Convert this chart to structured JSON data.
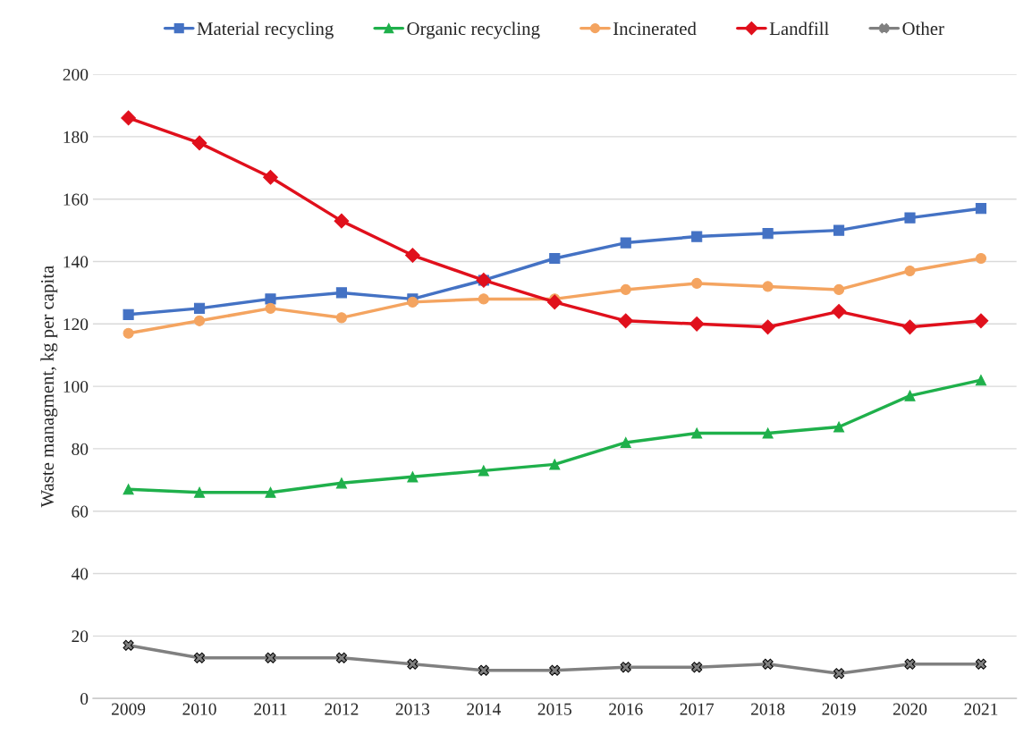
{
  "chart_data": {
    "type": "line",
    "ylabel": "Waste managment, kg per capita",
    "categories": [
      "2009",
      "2010",
      "2011",
      "2012",
      "2013",
      "2014",
      "2015",
      "2016",
      "2017",
      "2018",
      "2019",
      "2020",
      "2021"
    ],
    "series": [
      {
        "name": "Material recycling",
        "color": "#4472c4",
        "marker": "square",
        "values": [
          123,
          125,
          128,
          130,
          128,
          134,
          141,
          146,
          148,
          149,
          150,
          154,
          157
        ]
      },
      {
        "name": "Organic recycling",
        "color": "#1fb04b",
        "marker": "triangle",
        "values": [
          67,
          66,
          66,
          69,
          71,
          73,
          75,
          82,
          85,
          85,
          87,
          97,
          102
        ]
      },
      {
        "name": "Incinerated",
        "color": "#f4a460",
        "marker": "circle",
        "values": [
          117,
          121,
          125,
          122,
          127,
          128,
          128,
          131,
          133,
          132,
          131,
          137,
          141
        ]
      },
      {
        "name": "Landfill",
        "color": "#e0101c",
        "marker": "diamond",
        "values": [
          186,
          178,
          167,
          153,
          142,
          134,
          127,
          121,
          120,
          119,
          124,
          119,
          121
        ]
      },
      {
        "name": "Other",
        "color": "#808080",
        "marker": "cross",
        "values": [
          17,
          13,
          13,
          13,
          11,
          9,
          9,
          10,
          10,
          11,
          8,
          11,
          11
        ]
      }
    ],
    "ylim": [
      0,
      200
    ],
    "yticks": [
      0,
      20,
      40,
      60,
      80,
      100,
      120,
      140,
      160,
      180,
      200
    ],
    "grid": "y",
    "legend": "top",
    "line_style": "solid"
  }
}
